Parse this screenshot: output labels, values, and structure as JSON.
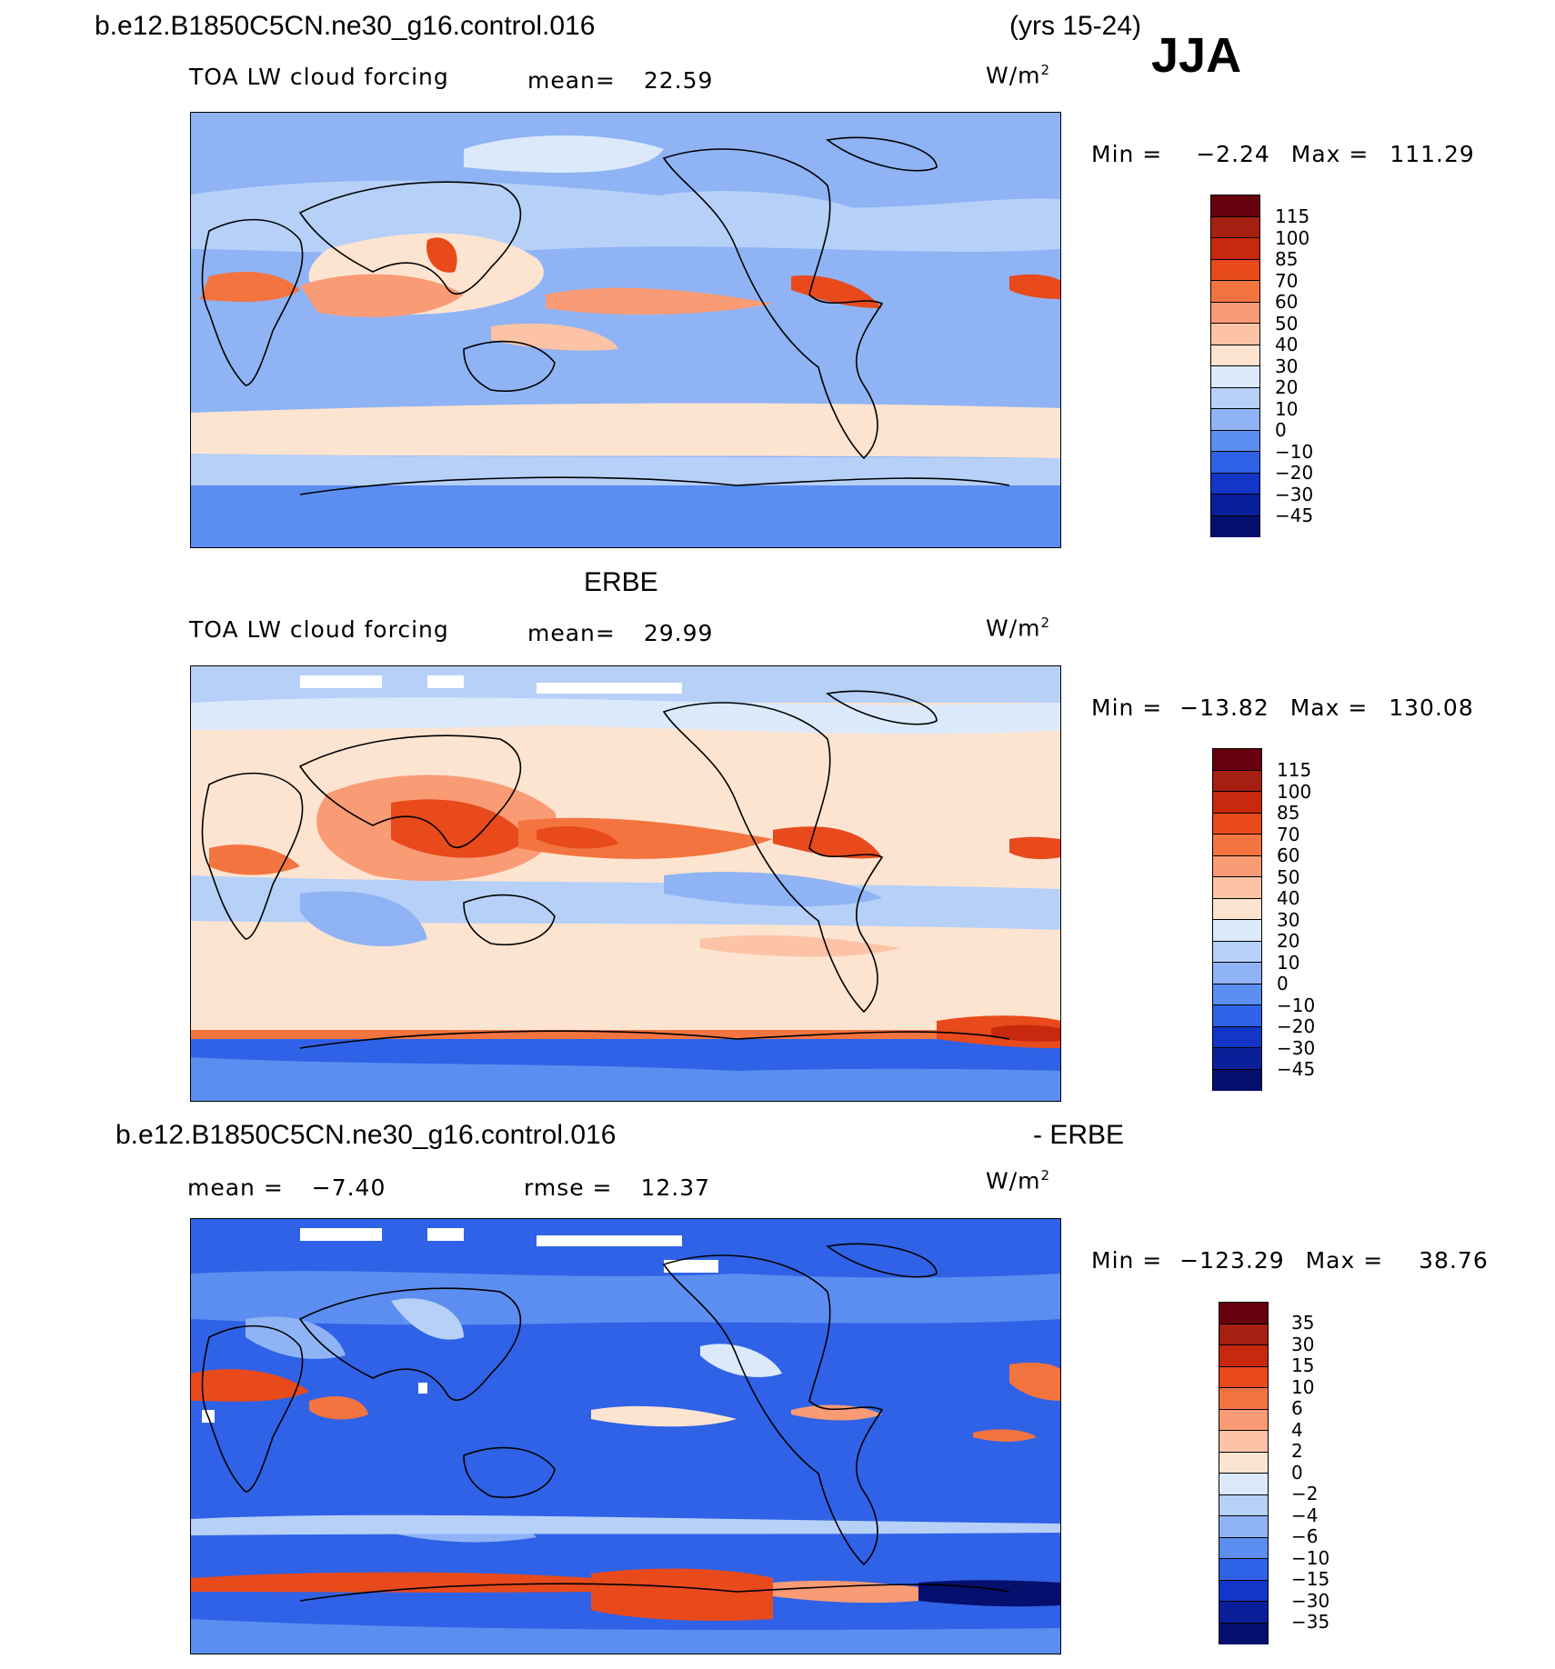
{
  "header": {
    "case_name": "b.e12.B1850C5CN.ne30_g16.control.016",
    "years": "(yrs 15-24)",
    "season": "JJA"
  },
  "panels": [
    {
      "id": "model",
      "variable": "TOA LW cloud forcing",
      "mean_label": "mean=",
      "mean_value": "22.59",
      "units": "W/m",
      "units_sup": "2",
      "min_label": "Min  =",
      "min_value": "−2.24",
      "max_label": "Max  =",
      "max_value": "111.29",
      "colorbar_labels": [
        "115",
        "100",
        "85",
        "70",
        "60",
        "50",
        "40",
        "30",
        "20",
        "10",
        "0",
        "−10",
        "−20",
        "−30",
        "−45"
      ]
    },
    {
      "id": "obs",
      "title": "ERBE",
      "variable": "TOA LW cloud forcing",
      "mean_label": "mean=",
      "mean_value": "29.99",
      "units": "W/m",
      "units_sup": "2",
      "min_label": "Min  =",
      "min_value": "−13.82",
      "max_label": "Max  =",
      "max_value": "130.08",
      "colorbar_labels": [
        "115",
        "100",
        "85",
        "70",
        "60",
        "50",
        "40",
        "30",
        "20",
        "10",
        "0",
        "−10",
        "−20",
        "−30",
        "−45"
      ]
    },
    {
      "id": "diff",
      "title_left": "b.e12.B1850C5CN.ne30_g16.control.016",
      "title_right": "- ERBE",
      "mean_label": "mean  =",
      "mean_value": "−7.40",
      "rmse_label": "rmse  =",
      "rmse_value": "12.37",
      "units": "W/m",
      "units_sup": "2",
      "min_label": "Min  =",
      "min_value": "−123.29",
      "max_label": "Max  =",
      "max_value": "38.76",
      "colorbar_labels": [
        "35",
        "30",
        "15",
        "10",
        "6",
        "4",
        "2",
        "0",
        "−2",
        "−4",
        "−6",
        "−10",
        "−15",
        "−30",
        "−35"
      ]
    }
  ],
  "colors": {
    "scale": [
      "#67000d",
      "#a51f12",
      "#c8290e",
      "#e84a1c",
      "#f4743f",
      "#f99b75",
      "#fcc3a6",
      "#fde4d1",
      "#dbe9fb",
      "#b6d0f8",
      "#8fb3f4",
      "#5b8ef0",
      "#2f62e6",
      "#1236c8",
      "#0a1f9a",
      "#040f6e"
    ]
  }
}
